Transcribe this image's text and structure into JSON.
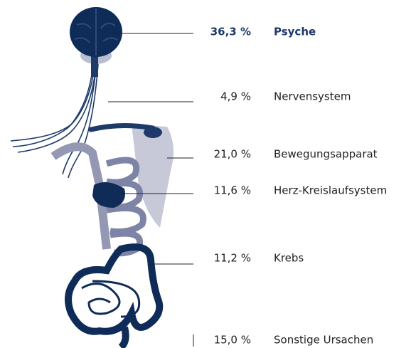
{
  "rows": [
    {
      "percent": "36,3 %",
      "label": "Psyche"
    },
    {
      "percent": "4,9 %",
      "label": "Nervensystem"
    },
    {
      "percent": "21,0 %",
      "label": "Bewegungsapparat"
    },
    {
      "percent": "11,6 %",
      "label": "Herz-Kreislaufsystem"
    },
    {
      "percent": "11,2 %",
      "label": "Krebs"
    },
    {
      "percent": "15,0 %",
      "label": "Sonstige Ursachen"
    }
  ]
}
